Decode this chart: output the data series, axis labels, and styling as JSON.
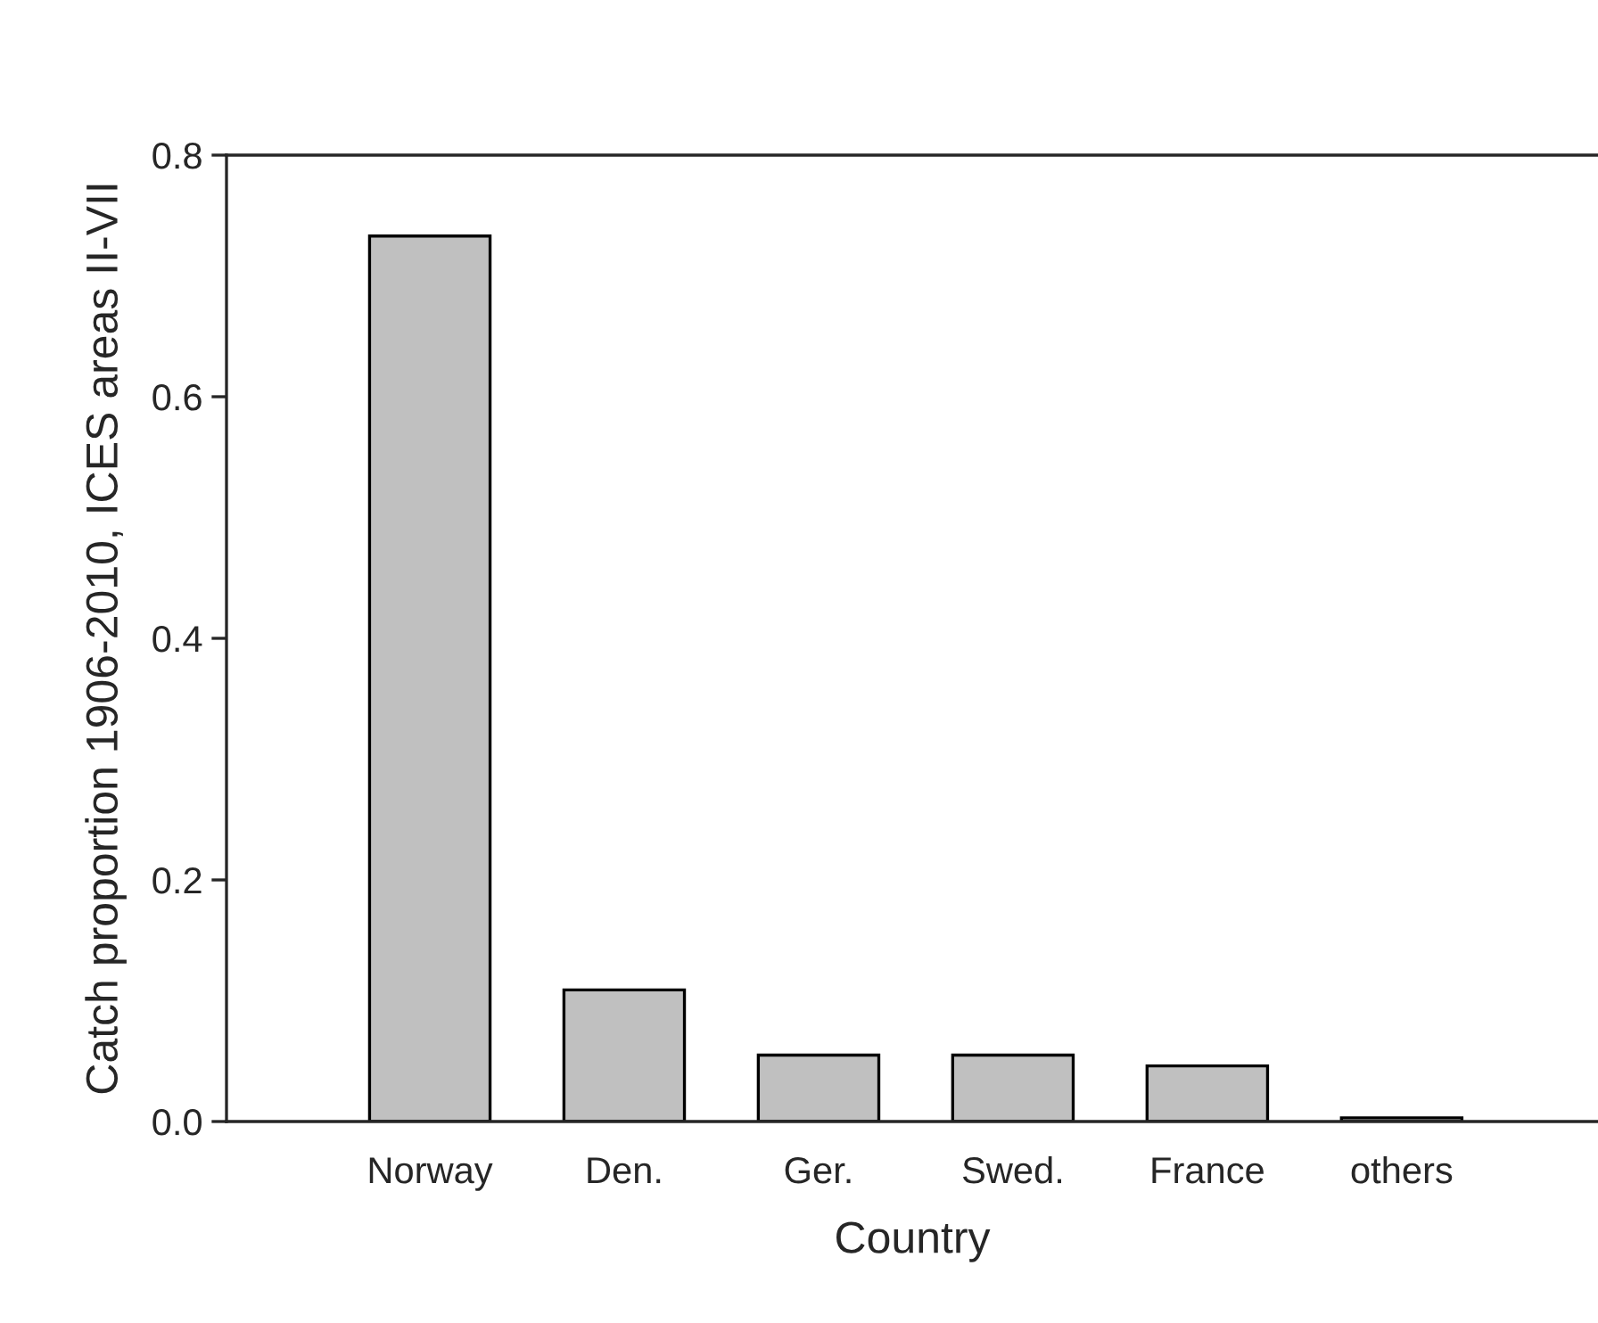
{
  "chart_data": {
    "type": "bar",
    "xlabel": "Country",
    "ylabel": "Catch proportion 1906-2010, ICES areas II-VII",
    "categories": [
      "Norway",
      "Den.",
      "Ger.",
      "Swed.",
      "France",
      "others"
    ],
    "values": [
      0.733,
      0.109,
      0.055,
      0.055,
      0.046,
      0.003
    ],
    "color": "#c0c0c0",
    "ylim": [
      0,
      0.8
    ],
    "yticks": [
      {
        "value": 0,
        "label": "0.0"
      },
      {
        "value": 0.2,
        "label": "0.2"
      },
      {
        "value": 0.4,
        "label": "0.4"
      },
      {
        "value": 0.6,
        "label": "0.6"
      },
      {
        "value": 0.8,
        "label": "0.8"
      }
    ],
    "grid": false,
    "legend": false
  }
}
